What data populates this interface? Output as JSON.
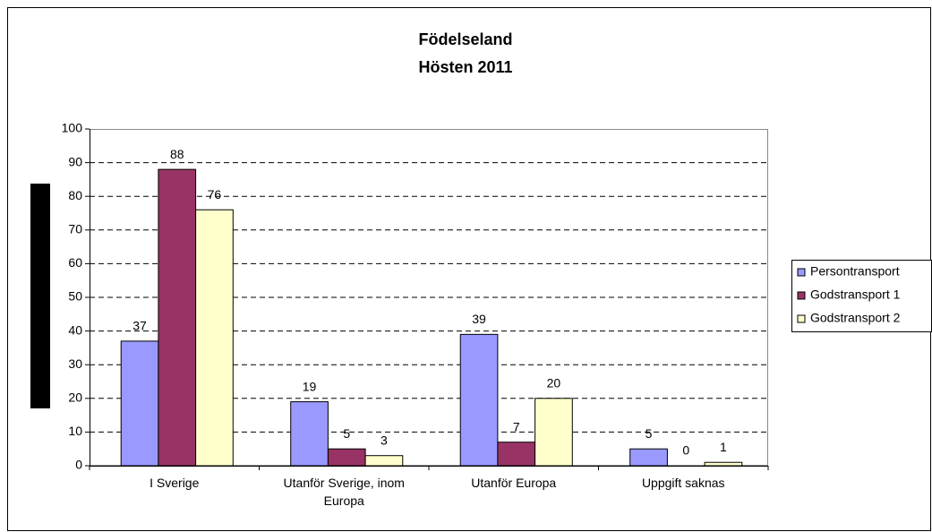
{
  "chart_data": {
    "type": "bar",
    "title": "Födelseland",
    "subtitle": "Hösten 2011",
    "categories": [
      "I Sverige",
      "Utanför Sverige, inom Europa",
      "Utanför Europa",
      "Uppgift saknas"
    ],
    "series": [
      {
        "name": "Persontransport",
        "color": "#9999ff",
        "values": [
          37,
          19,
          39,
          5
        ]
      },
      {
        "name": "Godstransport 1",
        "color": "#993366",
        "values": [
          88,
          5,
          7,
          0
        ]
      },
      {
        "name": "Godstransport 2",
        "color": "#ffffcc",
        "values": [
          76,
          3,
          20,
          1
        ]
      }
    ],
    "ylim": [
      0,
      100
    ],
    "yticks": [
      0,
      10,
      20,
      30,
      40,
      50,
      60,
      70,
      80,
      90,
      100
    ],
    "grid": true,
    "legend": "right"
  }
}
